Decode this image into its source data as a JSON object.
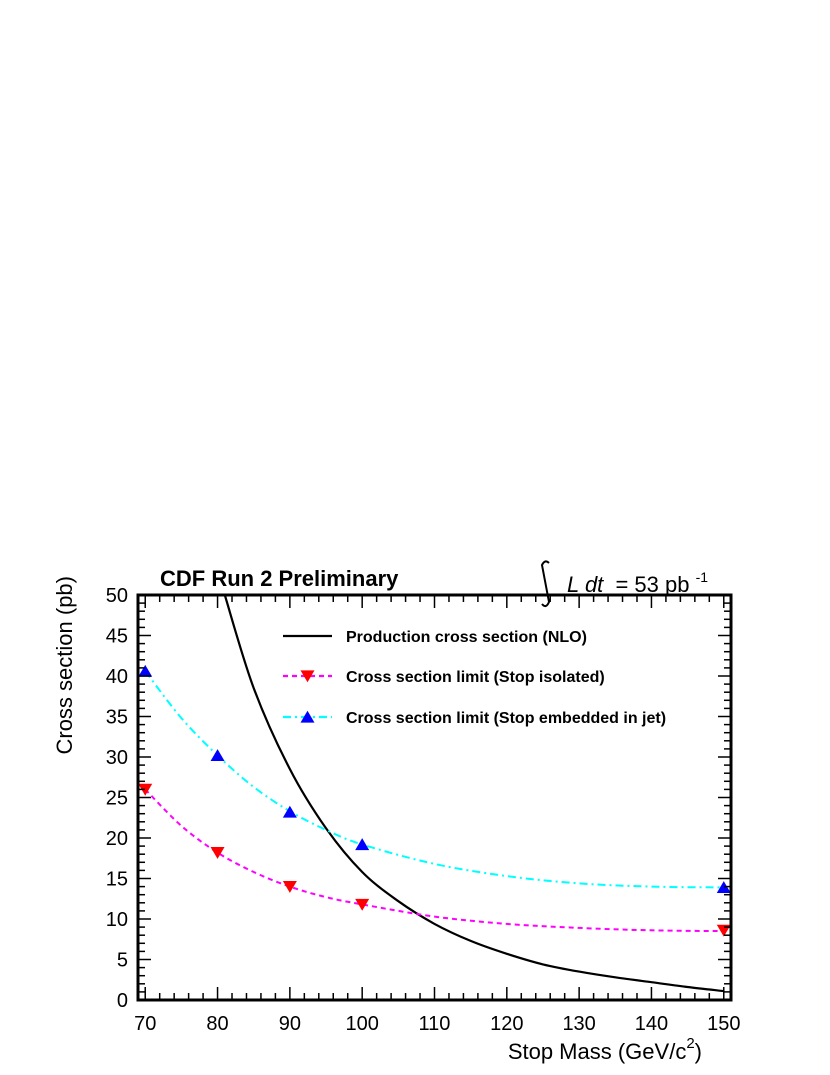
{
  "chart_data": {
    "type": "line",
    "header": "CDF Run 2 Preliminary",
    "luminosity": {
      "integral": "L dt",
      "equals": "= 53 pb",
      "exponent": "-1"
    },
    "xlabel": "Stop Mass  (GeV/c",
    "xlabel_sup": "2",
    "xlabel_close": ")",
    "ylabel": "Cross section (pb)",
    "xlim": [
      69,
      151
    ],
    "ylim": [
      0,
      50
    ],
    "xticks": [
      70,
      80,
      90,
      100,
      110,
      120,
      130,
      140,
      150
    ],
    "yticks": [
      0,
      5,
      10,
      15,
      20,
      25,
      30,
      35,
      40,
      45,
      50
    ],
    "grid": false,
    "legend_placement": "top-right",
    "series": [
      {
        "name": "Production cross section (NLO)",
        "style": "solid",
        "color": "#000000",
        "marker": "none",
        "x": [
          81,
          85,
          90,
          95,
          100,
          105,
          110,
          115,
          120,
          125,
          130,
          135,
          140,
          145,
          150
        ],
        "y": [
          50,
          38.5,
          28.5,
          21.2,
          15.8,
          12.2,
          9.4,
          7.3,
          5.7,
          4.4,
          3.5,
          2.8,
          2.2,
          1.6,
          1.1
        ]
      },
      {
        "name": "Cross section limit (Stop isolated)",
        "style": "dashed",
        "color": "#ff00ff",
        "marker": "triangle-down",
        "marker_color": "#ff0000",
        "x": [
          70,
          80,
          90,
          100,
          150
        ],
        "y": [
          26,
          18.2,
          14,
          11.8,
          8.6
        ],
        "curve_x": [
          70,
          75,
          80,
          85,
          90,
          95,
          100,
          110,
          120,
          130,
          140,
          150
        ],
        "curve_y": [
          26,
          21.5,
          18.2,
          15.8,
          14,
          12.7,
          11.8,
          10.3,
          9.4,
          8.9,
          8.6,
          8.5
        ]
      },
      {
        "name": "Cross section limit (Stop embedded in jet)",
        "style": "dashdot",
        "color": "#00ffff",
        "marker": "triangle-up",
        "marker_color": "#0000ff",
        "x": [
          70,
          80,
          90,
          100,
          150
        ],
        "y": [
          40.6,
          30.2,
          23.2,
          19.2,
          13.9
        ],
        "curve_x": [
          70,
          75,
          80,
          85,
          90,
          95,
          100,
          110,
          120,
          130,
          140,
          150
        ],
        "curve_y": [
          40.6,
          34.8,
          30.2,
          26.3,
          23.3,
          21,
          19.2,
          16.8,
          15.3,
          14.4,
          14,
          13.9
        ]
      }
    ]
  }
}
